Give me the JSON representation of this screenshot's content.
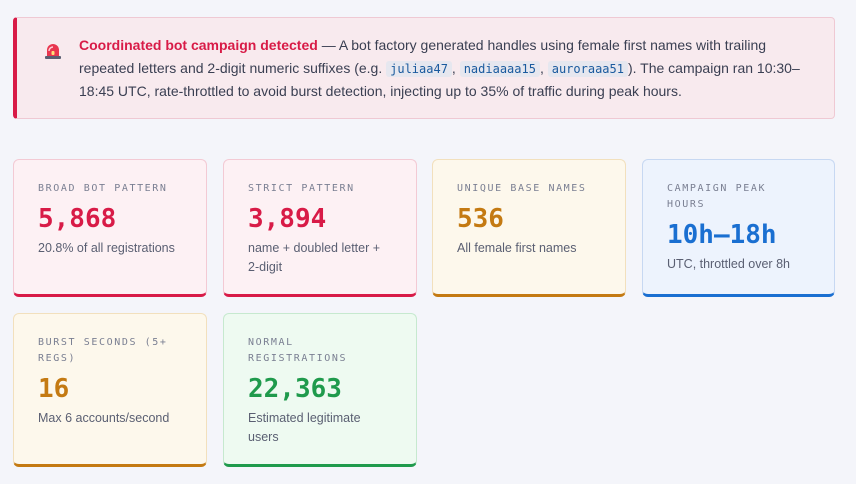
{
  "alert": {
    "icon": "siren-icon",
    "title": "Coordinated bot campaign detected",
    "text_before": " — A bot factory generated handles using female first names with trailing repeated letters and 2-digit numeric suffixes (e.g. ",
    "examples": [
      "juliaa47",
      "nadiaaaa15",
      "auroraaa51"
    ],
    "sep1": ", ",
    "sep2": ", ",
    "text_after": "). The campaign ran 10:30–18:45 UTC, rate-throttled to avoid burst detection, injecting up to 35% of traffic during peak hours."
  },
  "colors": {
    "red": "#d81b47",
    "amber": "#c47a12",
    "blue": "#1a6fd1",
    "green": "#1f9a4c"
  },
  "cards": [
    {
      "label": "BROAD BOT PATTERN",
      "value": "5,868",
      "sub": "20.8% of all registrations"
    },
    {
      "label": "STRICT PATTERN",
      "value": "3,894",
      "sub": "name + doubled letter + 2-digit"
    },
    {
      "label": "UNIQUE BASE NAMES",
      "value": "536",
      "sub": "All female first names"
    },
    {
      "label": "CAMPAIGN PEAK HOURS",
      "value": "10h–18h",
      "sub": "UTC, throttled over 8h"
    },
    {
      "label": "BURST SECONDS (5+ REGS)",
      "value": "16",
      "sub": "Max 6 accounts/second"
    },
    {
      "label": "NORMAL REGISTRATIONS",
      "value": "22,363",
      "sub": "Estimated legitimate users"
    }
  ]
}
